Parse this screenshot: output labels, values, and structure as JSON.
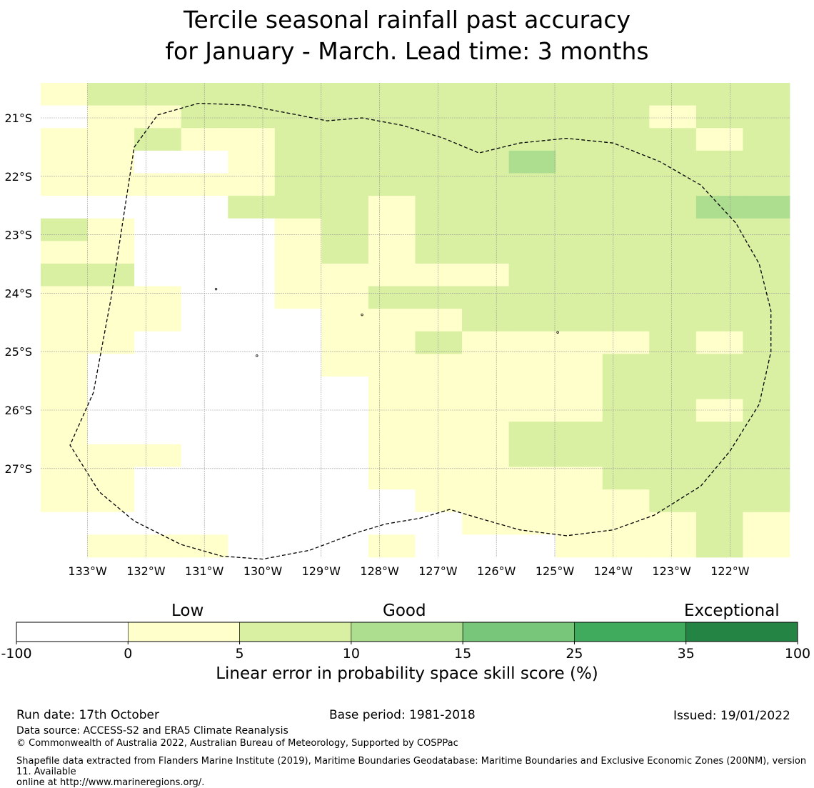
{
  "title_line1": "Tercile seasonal rainfall past accuracy",
  "title_line2": "for January - March. Lead time: 3 months",
  "map": {
    "lat_ticks": [
      {
        "lat": -21,
        "label": "21°S"
      },
      {
        "lat": -22,
        "label": "22°S"
      },
      {
        "lat": -23,
        "label": "23°S"
      },
      {
        "lat": -24,
        "label": "24°S"
      },
      {
        "lat": -25,
        "label": "25°S"
      },
      {
        "lat": -26,
        "label": "26°S"
      },
      {
        "lat": -27,
        "label": "27°S"
      }
    ],
    "lon_ticks": [
      {
        "lon": -133,
        "label": "133°W"
      },
      {
        "lon": -132,
        "label": "132°W"
      },
      {
        "lon": -131,
        "label": "131°W"
      },
      {
        "lon": -130,
        "label": "130°W"
      },
      {
        "lon": -129,
        "label": "129°W"
      },
      {
        "lon": -128,
        "label": "128°W"
      },
      {
        "lon": -127,
        "label": "127°W"
      },
      {
        "lon": -126,
        "label": "126°W"
      },
      {
        "lon": -125,
        "label": "125°W"
      },
      {
        "lon": -124,
        "label": "124°W"
      },
      {
        "lon": -123,
        "label": "123°W"
      },
      {
        "lon": -122,
        "label": "122°W"
      }
    ],
    "lon_min": -133.8,
    "lat_max": -20.45,
    "cell_deg": 0.833,
    "skill_grid": [
      "1222222222222222",
      "0112222222222122",
      "1121122222222212",
      "1100122222322222",
      "1111122222222222",
      "0000222122222233",
      "2100012122222222",
      "1100012122222222",
      "2200011111222222",
      "1110011222222222",
      "1110001112222222",
      "1100001121111212",
      "1000001111112222",
      "1000000111112222",
      "1000000111112212",
      "1000000111222222",
      "1110000111222222",
      "1100000111112222",
      "1100000011111222",
      "0000000001111121",
      "0111000100011121"
    ],
    "cell_colors": [
      "#ffffff",
      "#ffffcc",
      "#d9f0a3",
      "#addd8e",
      "#78c679"
    ],
    "grid_line_color": "#999999",
    "boundary_color": "#000000",
    "boundary_lonlat": [
      [
        -131.8,
        -20.95
      ],
      [
        -131.1,
        -20.75
      ],
      [
        -130.3,
        -20.78
      ],
      [
        -129.4,
        -20.95
      ],
      [
        -128.9,
        -21.05
      ],
      [
        -128.3,
        -21.0
      ],
      [
        -127.6,
        -21.13
      ],
      [
        -126.9,
        -21.35
      ],
      [
        -126.3,
        -21.6
      ],
      [
        -125.6,
        -21.43
      ],
      [
        -124.8,
        -21.35
      ],
      [
        -124.0,
        -21.43
      ],
      [
        -123.2,
        -21.75
      ],
      [
        -122.5,
        -22.15
      ],
      [
        -121.9,
        -22.8
      ],
      [
        -121.5,
        -23.5
      ],
      [
        -121.3,
        -24.3
      ],
      [
        -121.3,
        -25.0
      ],
      [
        -121.5,
        -25.9
      ],
      [
        -122.0,
        -26.7
      ],
      [
        -122.5,
        -27.3
      ],
      [
        -123.3,
        -27.8
      ],
      [
        -124.0,
        -28.05
      ],
      [
        -124.8,
        -28.15
      ],
      [
        -125.6,
        -28.05
      ],
      [
        -126.3,
        -27.85
      ],
      [
        -126.8,
        -27.7
      ],
      [
        -127.3,
        -27.85
      ],
      [
        -127.9,
        -27.95
      ],
      [
        -128.4,
        -28.1
      ],
      [
        -129.2,
        -28.4
      ],
      [
        -130.0,
        -28.55
      ],
      [
        -130.7,
        -28.5
      ],
      [
        -131.4,
        -28.3
      ],
      [
        -132.2,
        -27.9
      ],
      [
        -132.8,
        -27.4
      ],
      [
        -133.3,
        -26.6
      ],
      [
        -132.9,
        -25.7
      ],
      [
        -132.6,
        -24.1
      ],
      [
        -132.2,
        -21.5
      ],
      [
        -131.8,
        -20.95
      ]
    ],
    "islands": [
      {
        "name": "island-a",
        "lon": -130.8,
        "lat": -23.93
      },
      {
        "name": "island-b",
        "lon": -128.3,
        "lat": -24.37
      },
      {
        "name": "island-c",
        "lon": -130.1,
        "lat": -25.07
      },
      {
        "name": "island-d",
        "lon": -124.95,
        "lat": -24.67
      }
    ]
  },
  "colorbar": {
    "category_low": "Low",
    "category_good": "Good",
    "category_exceptional": "Exceptional",
    "bins": [
      {
        "from": "-100",
        "to": "0",
        "color": "#ffffff"
      },
      {
        "from": "0",
        "to": "5",
        "color": "#ffffcc"
      },
      {
        "from": "5",
        "to": "10",
        "color": "#d9f0a3"
      },
      {
        "from": "10",
        "to": "15",
        "color": "#addd8e"
      },
      {
        "from": "15",
        "to": "25",
        "color": "#78c679"
      },
      {
        "from": "25",
        "to": "35",
        "color": "#41ab5d"
      },
      {
        "from": "35",
        "to": "100",
        "color": "#238443"
      }
    ],
    "tick_labels": [
      "-100",
      "0",
      "5",
      "10",
      "15",
      "25",
      "35",
      "100"
    ],
    "axis_title": "Linear error in probability space skill score (%)"
  },
  "footer": {
    "run_date": "Run date: 17th October",
    "base_period": "Base period: 1981-2018",
    "issued": "Issued: 19/01/2022",
    "data_source": "Data source: ACCESS-S2 and ERA5 Climate Reanalysis",
    "copyright": "© Commonwealth of Australia 2022, Australian Bureau of Meteorology, Supported by COSPPac",
    "shapefile_line1": "Shapefile data extracted from Flanders Marine Institute (2019), Maritime Boundaries Geodatabase: Maritime Boundaries and Exclusive Economic Zones (200NM), version 11. Available",
    "shapefile_line2": "online at http://www.marineregions.org/."
  }
}
